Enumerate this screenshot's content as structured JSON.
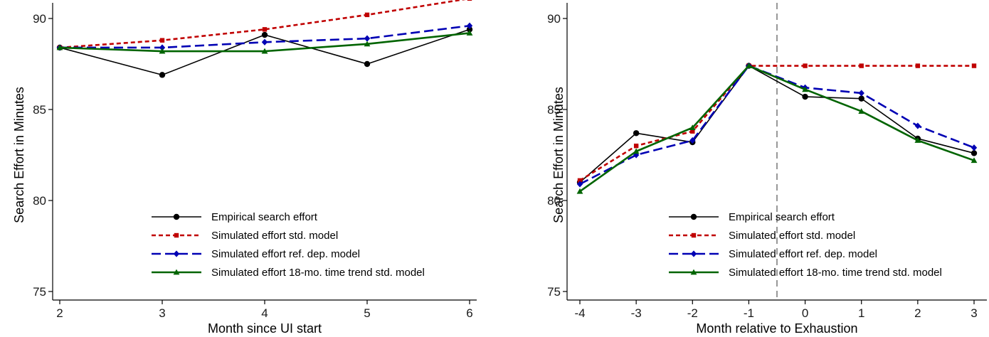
{
  "charts": [
    {
      "type": "line",
      "xlabel": "Month since UI start",
      "ylabel": "Search Effort in Minutes",
      "xlim": [
        2,
        6
      ],
      "ylim": [
        75,
        90
      ],
      "x_ticks": [
        2,
        3,
        4,
        5,
        6
      ],
      "y_ticks": [
        75,
        80,
        85,
        90
      ],
      "legend_position": "bottom-center",
      "series": [
        {
          "name": "Empirical search effort",
          "color": "#000000",
          "dash": "solid",
          "marker": "circle",
          "x": [
            2,
            3,
            4,
            5,
            6
          ],
          "y": [
            88.4,
            86.9,
            89.1,
            87.5,
            89.4
          ]
        },
        {
          "name": "Simulated effort std. model",
          "color": "#c00000",
          "dash": "short",
          "marker": "square",
          "x": [
            2,
            3,
            4,
            5,
            6
          ],
          "y": [
            88.4,
            88.8,
            89.4,
            90.2,
            91.1
          ]
        },
        {
          "name": "Simulated effort ref. dep. model",
          "color": "#0000b4",
          "dash": "long",
          "marker": "diamond",
          "x": [
            2,
            3,
            4,
            5,
            6
          ],
          "y": [
            88.4,
            88.4,
            88.7,
            88.9,
            89.6
          ]
        },
        {
          "name": "Simulated effort 18-mo. time trend std. model",
          "color": "#006400",
          "dash": "solid",
          "marker": "triangle",
          "x": [
            2,
            3,
            4,
            5,
            6
          ],
          "y": [
            88.4,
            88.2,
            88.2,
            88.6,
            89.2
          ]
        }
      ]
    },
    {
      "type": "line",
      "xlabel": "Month relative to Exhaustion",
      "ylabel": "Search Effort in Minutes",
      "xlim": [
        -4,
        3
      ],
      "ylim": [
        75,
        90
      ],
      "x_ticks": [
        -4,
        -3,
        -2,
        -1,
        0,
        1,
        2,
        3
      ],
      "y_ticks": [
        75,
        80,
        85,
        90
      ],
      "vline_x": -0.5,
      "legend_position": "bottom-center",
      "series": [
        {
          "name": "Empirical search effort",
          "color": "#000000",
          "dash": "solid",
          "marker": "circle",
          "x": [
            -4,
            -3,
            -2,
            -1,
            0,
            1,
            2,
            3
          ],
          "y": [
            81.0,
            83.7,
            83.2,
            87.4,
            85.7,
            85.6,
            83.4,
            82.6
          ]
        },
        {
          "name": "Simulated effort std. model",
          "color": "#c00000",
          "dash": "short",
          "marker": "square",
          "x": [
            -4,
            -3,
            -2,
            -1,
            0,
            1,
            2,
            3
          ],
          "y": [
            81.1,
            83.0,
            83.8,
            87.4,
            87.4,
            87.4,
            87.4,
            87.4
          ]
        },
        {
          "name": "Simulated effort ref. dep. model",
          "color": "#0000b4",
          "dash": "long",
          "marker": "diamond",
          "x": [
            -4,
            -3,
            -2,
            -1,
            0,
            1,
            2,
            3
          ],
          "y": [
            80.9,
            82.5,
            83.3,
            87.4,
            86.2,
            85.9,
            84.1,
            82.9
          ]
        },
        {
          "name": "Simulated effort 18-mo. time trend std. model",
          "color": "#006400",
          "dash": "solid",
          "marker": "triangle",
          "x": [
            -4,
            -3,
            -2,
            -1,
            0,
            1,
            2,
            3
          ],
          "y": [
            80.5,
            82.7,
            84.0,
            87.4,
            86.1,
            84.9,
            83.3,
            82.2
          ]
        }
      ]
    }
  ]
}
